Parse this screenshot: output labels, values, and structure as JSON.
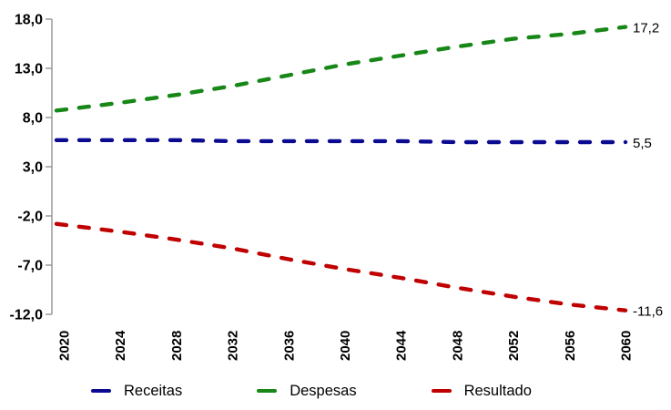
{
  "chart_data": {
    "type": "line",
    "title": "",
    "xlabel": "",
    "ylabel": "",
    "x": [
      2020,
      2024,
      2028,
      2032,
      2036,
      2040,
      2044,
      2048,
      2052,
      2056,
      2060
    ],
    "x_tick_labels": [
      "2020",
      "2024",
      "2028",
      "2032",
      "2036",
      "2040",
      "2044",
      "2048",
      "2052",
      "2056",
      "2060"
    ],
    "series": [
      {
        "name": "Receitas",
        "color": "#0B0B92",
        "values": [
          5.7,
          5.7,
          5.7,
          5.6,
          5.6,
          5.6,
          5.6,
          5.5,
          5.5,
          5.5,
          5.5
        ],
        "end_label": "5,5"
      },
      {
        "name": "Despesas",
        "color": "#178717",
        "values": [
          8.8,
          9.5,
          10.3,
          11.2,
          12.3,
          13.4,
          14.3,
          15.2,
          16.0,
          16.5,
          17.2
        ],
        "end_label": "17,2"
      },
      {
        "name": "Resultado",
        "color": "#C00000",
        "values": [
          -2.9,
          -3.6,
          -4.4,
          -5.3,
          -6.4,
          -7.4,
          -8.3,
          -9.3,
          -10.2,
          -11.0,
          -11.6
        ],
        "end_label": "-11,6"
      }
    ],
    "y_ticks": [
      {
        "value": 18,
        "label": "18,0"
      },
      {
        "value": 13,
        "label": "13,0"
      },
      {
        "value": 8,
        "label": "8,0"
      },
      {
        "value": 3,
        "label": "3,0"
      },
      {
        "value": -2,
        "label": "-2,0"
      },
      {
        "value": -7,
        "label": "-7,0"
      },
      {
        "value": -12,
        "label": "-12,0"
      }
    ],
    "ylim": [
      -12,
      18
    ],
    "xlim": [
      2020,
      2060
    ],
    "grid": false,
    "legend_position": "bottom",
    "line_style": "dashed",
    "axis_color": "#8C8C8C",
    "text_color": "#000000",
    "background_color": "#FFFFFF"
  }
}
